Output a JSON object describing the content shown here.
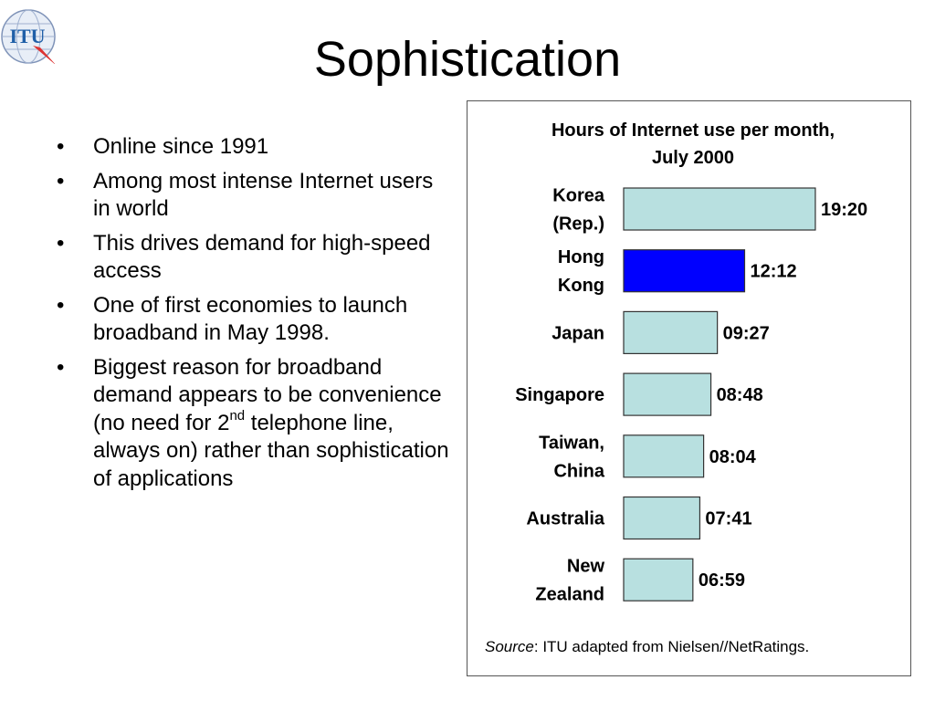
{
  "logo": {
    "text": "ITU",
    "icon": "itu-globe-logo-icon",
    "color": "#1f5fa8"
  },
  "slide": {
    "title": "Sophistication"
  },
  "bullets": [
    {
      "text": "Online since 1991"
    },
    {
      "text": "Among most intense Internet users in world"
    },
    {
      "text": "This drives demand for high-speed access"
    },
    {
      "text": "One of first economies to launch broadband in May 1998."
    },
    {
      "text_before": "Biggest reason for broadband demand appears to be convenience (no need for 2",
      "sup": "nd",
      "text_after": " telephone line, always on) rather than sophistication of applications"
    }
  ],
  "source": {
    "label": "Source",
    "text": ": ITU adapted from Nielsen//NetRatings."
  },
  "chart_data": {
    "type": "bar",
    "orientation": "horizontal",
    "title": "Hours of Internet use per month, July 2000",
    "title_lines": [
      "Hours of Internet use per month,",
      "July 2000"
    ],
    "xlabel": "",
    "ylabel": "",
    "unit": "hours:minutes",
    "categories": [
      "Korea (Rep.)",
      "Hong Kong",
      "Japan",
      "Singapore",
      "Taiwan, China",
      "Australia",
      "New Zealand"
    ],
    "category_lines": [
      [
        "Korea",
        "(Rep.)"
      ],
      [
        "Hong",
        "Kong"
      ],
      [
        "Japan"
      ],
      [
        "Singapore"
      ],
      [
        "Taiwan,",
        "China"
      ],
      [
        "Australia"
      ],
      [
        "New",
        "Zealand"
      ]
    ],
    "values": [
      19.333,
      12.2,
      9.45,
      8.8,
      8.067,
      7.683,
      6.983
    ],
    "value_labels": [
      "19:20",
      "12:12",
      "09:27",
      "08:48",
      "08:04",
      "07:41",
      "06:59"
    ],
    "bar_colors": [
      "#b8e0e0",
      "#0000ff",
      "#b8e0e0",
      "#b8e0e0",
      "#b8e0e0",
      "#b8e0e0",
      "#b8e0e0"
    ],
    "grid": false,
    "legend": "none"
  }
}
